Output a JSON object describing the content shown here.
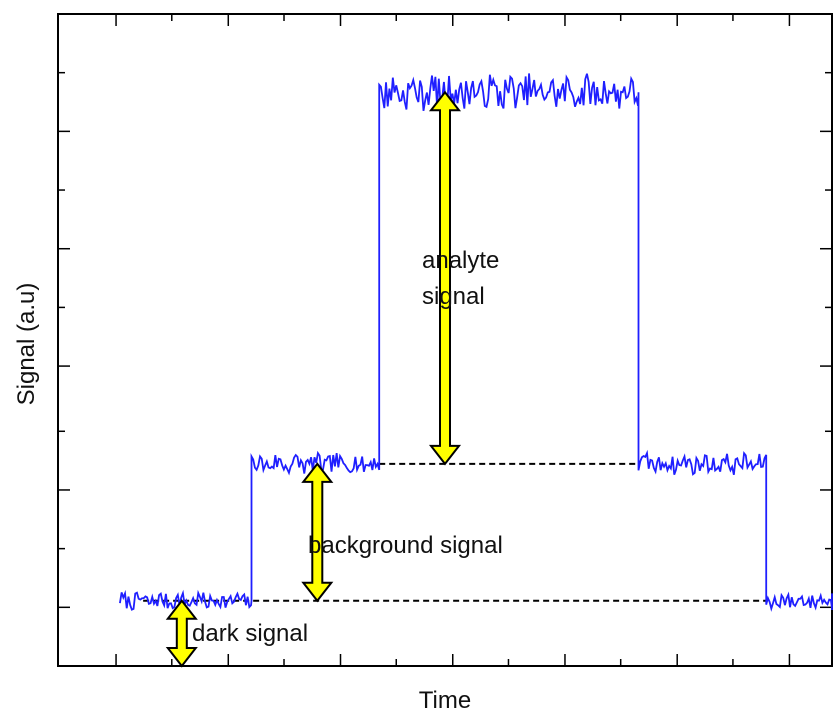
{
  "chart_data": {
    "type": "line",
    "xlabel": "Time",
    "ylabel": "Signal (a.u)",
    "xlim": [
      0,
      1
    ],
    "ylim": [
      0,
      1
    ],
    "grid": false,
    "series": [
      {
        "color": "#1f1fff",
        "segments": [
          {
            "x_start": 0.08,
            "x_end": 0.25,
            "level": 0.1,
            "noise": 0.012
          },
          {
            "x_start": 0.25,
            "x_end": 0.415,
            "level": 0.31,
            "noise": 0.014
          },
          {
            "x_start": 0.415,
            "x_end": 0.75,
            "level": 0.88,
            "noise": 0.024
          },
          {
            "x_start": 0.75,
            "x_end": 0.915,
            "level": 0.31,
            "noise": 0.014
          },
          {
            "x_start": 0.915,
            "x_end": 1.08,
            "level": 0.1,
            "noise": 0.012
          }
        ]
      }
    ],
    "reference_lines": [
      {
        "y": 0.1,
        "x_start": 0.11,
        "x_end": 0.915,
        "style": "dashed"
      },
      {
        "y": 0.31,
        "x_start": 0.415,
        "x_end": 0.75,
        "style": "dashed"
      }
    ],
    "arrows": [
      {
        "x": 0.16,
        "y_start": 0.0,
        "y_end": 0.1,
        "color": "#ffff00"
      },
      {
        "x": 0.335,
        "y_start": 0.1,
        "y_end": 0.31,
        "color": "#ffff00"
      },
      {
        "x": 0.5,
        "y_start": 0.31,
        "y_end": 0.88,
        "color": "#ffff00"
      }
    ],
    "annotations": [
      {
        "text": "dark signal"
      },
      {
        "text": "background signal"
      },
      {
        "text": "analyte signal"
      }
    ]
  }
}
